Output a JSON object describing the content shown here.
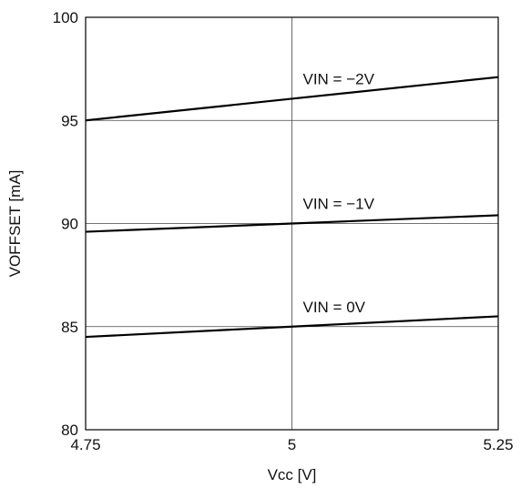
{
  "chart_data": {
    "type": "line",
    "title": "",
    "xlabel": "Vcc [V]",
    "ylabel": "VOFFSET [mA]",
    "xlim": [
      4.75,
      5.25
    ],
    "ylim": [
      80,
      100
    ],
    "x_ticks": [
      4.75,
      5,
      5.25
    ],
    "x_tick_labels": [
      "4.75",
      "5",
      "5.25"
    ],
    "y_ticks": [
      80,
      85,
      90,
      95,
      100
    ],
    "y_tick_labels": [
      "80",
      "85",
      "90",
      "95",
      "100"
    ],
    "grid": true,
    "legend": "none",
    "series": [
      {
        "name": "VIN = −2V",
        "x": [
          4.75,
          5,
          5.25
        ],
        "y": [
          95.0,
          96.05,
          97.1
        ],
        "color": "#000000"
      },
      {
        "name": "VIN = −1V",
        "x": [
          4.75,
          5,
          5.25
        ],
        "y": [
          89.6,
          90.0,
          90.4
        ],
        "color": "#000000"
      },
      {
        "name": "VIN = 0V",
        "x": [
          4.75,
          5,
          5.25
        ],
        "y": [
          84.5,
          85.0,
          85.5
        ],
        "color": "#000000"
      }
    ]
  }
}
